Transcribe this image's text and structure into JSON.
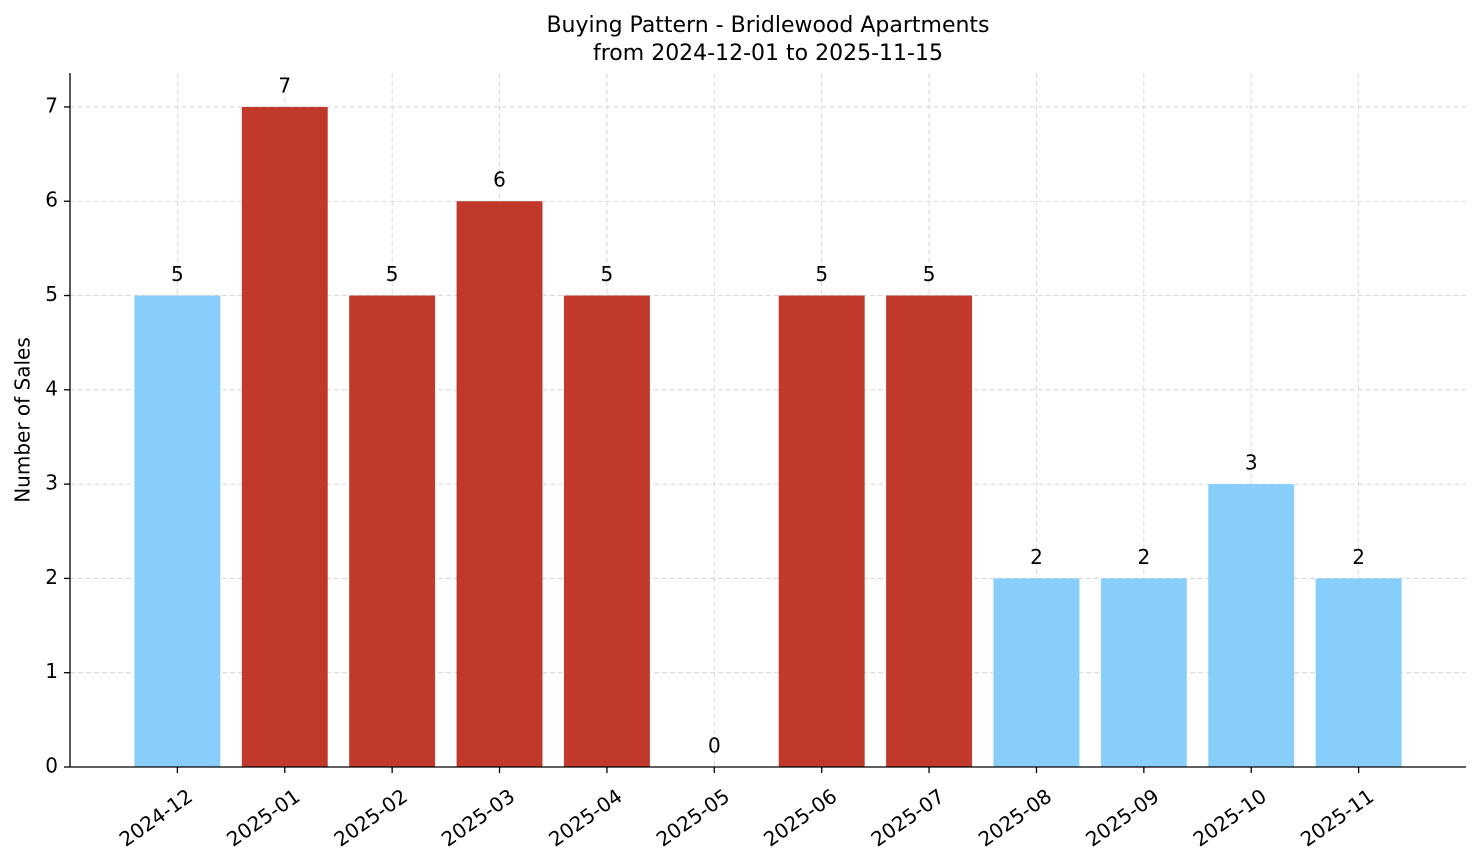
{
  "chart_data": {
    "type": "bar",
    "title": "Buying Pattern - Bridlewood Apartments",
    "subtitle": "from 2024-12-01 to 2025-11-15",
    "y_label": "Number of Sales",
    "categories": [
      "2024-12",
      "2025-01",
      "2025-02",
      "2025-03",
      "2025-04",
      "2025-05",
      "2025-06",
      "2025-07",
      "2025-08",
      "2025-09",
      "2025-10",
      "2025-11"
    ],
    "values": [
      5,
      7,
      5,
      6,
      5,
      0,
      5,
      5,
      2,
      2,
      3,
      2
    ],
    "colors": [
      "#87cefa",
      "#c0392b",
      "#c0392b",
      "#c0392b",
      "#c0392b",
      "#c0392b",
      "#c0392b",
      "#c0392b",
      "#87cefa",
      "#87cefa",
      "#87cefa",
      "#87cefa"
    ],
    "ylim": [
      0,
      7.36
    ],
    "yticks": [
      0,
      1,
      2,
      3,
      4,
      5,
      6,
      7
    ],
    "grid": true
  }
}
